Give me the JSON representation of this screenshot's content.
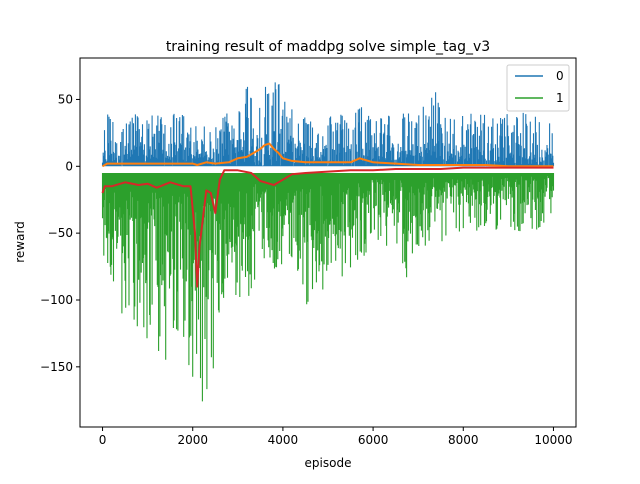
{
  "chart_data": {
    "type": "line",
    "title": "training result of maddpg solve simple_tag_v3",
    "xlabel": "episode",
    "ylabel": "reward",
    "xlim": [
      -500,
      10500
    ],
    "ylim": [
      -195,
      81
    ],
    "xticks": [
      0,
      2000,
      4000,
      6000,
      8000,
      10000
    ],
    "xtick_labels": [
      "0",
      "2000",
      "4000",
      "6000",
      "8000",
      "10000"
    ],
    "yticks": [
      -150,
      -100,
      -50,
      0,
      50
    ],
    "ytick_labels": [
      "−150",
      "−100",
      "−50",
      "0",
      "50"
    ],
    "grid": false,
    "legend_position": "top-right",
    "series": [
      {
        "name": "0",
        "color": "#1f77b4",
        "envelope": {
          "x": [
            0,
            100,
            150,
            500,
            1000,
            1500,
            1800,
            2000,
            2100,
            2300,
            2500,
            2600,
            3000,
            3300,
            3500,
            3700,
            3800,
            4000,
            4200,
            4500,
            5000,
            5500,
            5600,
            6000,
            6500,
            7000,
            7400,
            7500,
            8000,
            8500,
            9000,
            9500,
            9900,
            10000
          ],
          "high": [
            20,
            40,
            50,
            40,
            40,
            40,
            40,
            30,
            30,
            30,
            30,
            40,
            50,
            70,
            60,
            60,
            70,
            60,
            50,
            40,
            40,
            40,
            50,
            40,
            40,
            40,
            60,
            40,
            40,
            40,
            40,
            40,
            40,
            20
          ],
          "low": [
            0,
            0,
            0,
            0,
            0,
            0,
            0,
            0,
            0,
            0,
            0,
            0,
            0,
            0,
            0,
            0,
            0,
            0,
            0,
            0,
            0,
            0,
            0,
            0,
            0,
            0,
            0,
            0,
            0,
            0,
            0,
            0,
            0,
            0
          ]
        }
      },
      {
        "name": "1",
        "color": "#2ca02c",
        "envelope": {
          "x": [
            0,
            50,
            100,
            300,
            500,
            800,
            1000,
            1100,
            1300,
            1500,
            1800,
            1950,
            2000,
            2050,
            2100,
            2200,
            2300,
            2400,
            2500,
            2600,
            3000,
            3300,
            3500,
            3700,
            4000,
            4200,
            4500,
            5000,
            5500,
            6000,
            6500,
            6800,
            7000,
            7500,
            8000,
            8500,
            9000,
            9500,
            10000
          ],
          "high": [
            -5,
            -5,
            -5,
            -5,
            -5,
            -5,
            -5,
            -5,
            -5,
            -5,
            -5,
            -5,
            -5,
            -5,
            -5,
            -5,
            -5,
            -5,
            -5,
            -5,
            -5,
            -5,
            -5,
            -5,
            -5,
            -5,
            -5,
            -5,
            -5,
            -5,
            -5,
            -5,
            -5,
            -5,
            -5,
            -5,
            -5,
            -5,
            -5
          ],
          "low": [
            -80,
            -110,
            -100,
            -110,
            -120,
            -130,
            -138,
            -115,
            -150,
            -140,
            -130,
            -165,
            -182,
            -178,
            -175,
            -180,
            -178,
            -168,
            -140,
            -120,
            -110,
            -100,
            -70,
            -80,
            -80,
            -80,
            -110,
            -90,
            -80,
            -60,
            -60,
            -90,
            -60,
            -60,
            -50,
            -50,
            -50,
            -50,
            -40
          ]
        }
      },
      {
        "name": "",
        "color": "#ff7f0e",
        "x": [
          0,
          100,
          500,
          1000,
          1500,
          2000,
          2100,
          2300,
          2500,
          2800,
          3000,
          3200,
          3400,
          3500,
          3600,
          3700,
          3800,
          3900,
          4000,
          4200,
          4500,
          5000,
          5500,
          5700,
          6000,
          6500,
          7000,
          7500,
          8000,
          8500,
          9000,
          9500,
          10000
        ],
        "values": [
          0,
          2,
          2,
          2,
          2,
          2,
          1,
          3,
          2,
          3,
          6,
          7,
          11,
          13,
          16,
          17,
          13,
          10,
          6,
          4,
          3,
          3,
          3,
          6,
          3,
          2,
          1,
          1,
          1,
          1,
          0,
          0,
          0
        ]
      },
      {
        "name": "",
        "color": "#d62728",
        "x": [
          0,
          50,
          200,
          500,
          800,
          1000,
          1200,
          1500,
          1800,
          1950,
          2050,
          2100,
          2150,
          2300,
          2400,
          2500,
          2600,
          2700,
          3000,
          3300,
          3500,
          3700,
          3800,
          4000,
          4200,
          4500,
          5000,
          5500,
          6000,
          6500,
          7000,
          7500,
          8000,
          8500,
          9000,
          9500,
          10000
        ],
        "values": [
          -20,
          -15,
          -15,
          -12,
          -14,
          -13,
          -16,
          -12,
          -15,
          -15,
          -50,
          -90,
          -60,
          -18,
          -20,
          -35,
          -10,
          -3,
          -3,
          -5,
          -11,
          -13,
          -14,
          -10,
          -6,
          -5,
          -4,
          -3,
          -3,
          -2,
          -2,
          -2,
          -1,
          -1,
          -1,
          -1,
          -1
        ]
      }
    ]
  }
}
